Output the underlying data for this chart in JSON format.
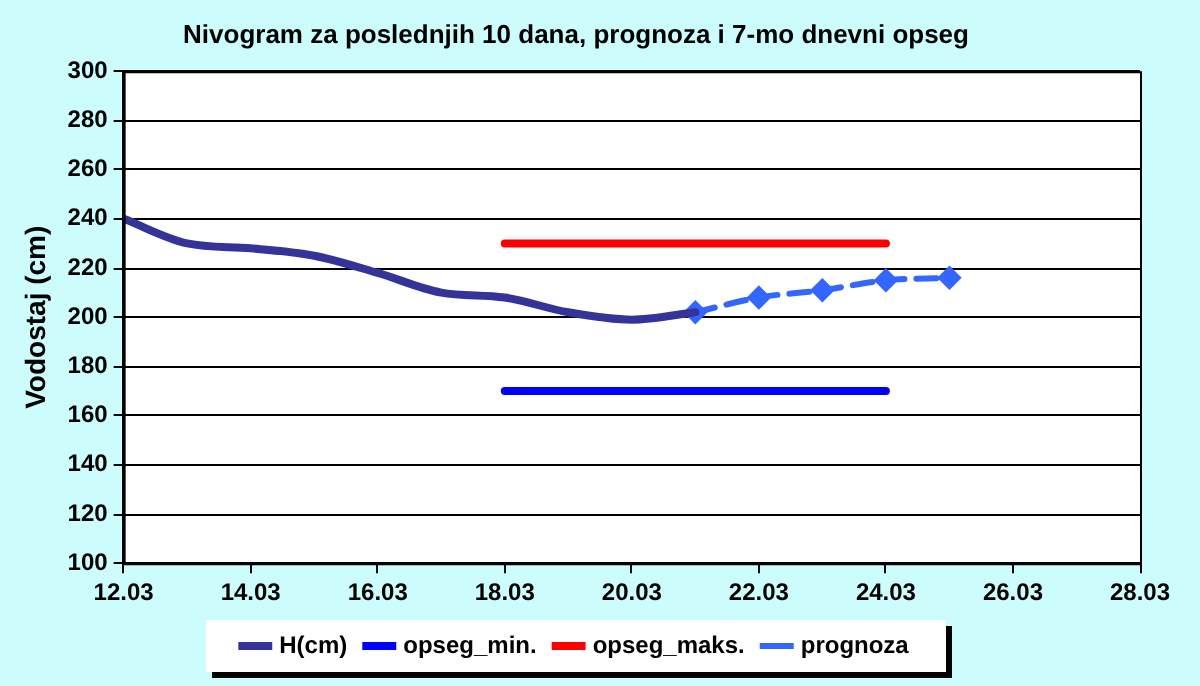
{
  "chart_data": {
    "type": "line",
    "title": "Nivogram za poslednjih 10 dana, prognoza i 7-mo dnevni opseg",
    "ylabel": "Vodostaj (cm)",
    "xlim": [
      "--03-12",
      "--03-28"
    ],
    "xticks": [
      {
        "value": "--03-12",
        "label": "12.03"
      },
      {
        "value": "--03-14",
        "label": "14.03"
      },
      {
        "value": "--03-16",
        "label": "16.03"
      },
      {
        "value": "--03-18",
        "label": "18.03"
      },
      {
        "value": "--03-20",
        "label": "20.03"
      },
      {
        "value": "--03-22",
        "label": "22.03"
      },
      {
        "value": "--03-24",
        "label": "24.03"
      },
      {
        "value": "--03-26",
        "label": "26.03"
      },
      {
        "value": "--03-28",
        "label": "28.03"
      }
    ],
    "ylim": [
      100,
      300
    ],
    "yticks": [
      100,
      120,
      140,
      160,
      180,
      200,
      220,
      240,
      260,
      280,
      300
    ],
    "grid": "y",
    "legend": "bottom",
    "series": [
      {
        "name": "H(cm)",
        "color": "#333399",
        "x": [
          "--03-12",
          "--03-13",
          "--03-14",
          "--03-15",
          "--03-16",
          "--03-17",
          "--03-18",
          "--03-19",
          "--03-20",
          "--03-21"
        ],
        "values": [
          240,
          230,
          228,
          225,
          218,
          210,
          208,
          202,
          199,
          202
        ],
        "marker": "none",
        "line_style": "solid"
      },
      {
        "name": "opseg_min.",
        "color": "#0000ff",
        "x": [
          "--03-18",
          "--03-24"
        ],
        "values": [
          170,
          170
        ],
        "marker": "none",
        "line_style": "solid"
      },
      {
        "name": "opseg_maks.",
        "color": "#ff0000",
        "x": [
          "--03-18",
          "--03-24"
        ],
        "values": [
          230,
          230
        ],
        "marker": "none",
        "line_style": "solid"
      },
      {
        "name": "prognoza",
        "color": "#3366ff",
        "x": [
          "--03-21",
          "--03-22",
          "--03-23",
          "--03-24",
          "--03-25"
        ],
        "values": [
          202,
          208,
          211,
          215,
          216
        ],
        "marker": "diamond",
        "line_style": "dashed"
      }
    ]
  }
}
